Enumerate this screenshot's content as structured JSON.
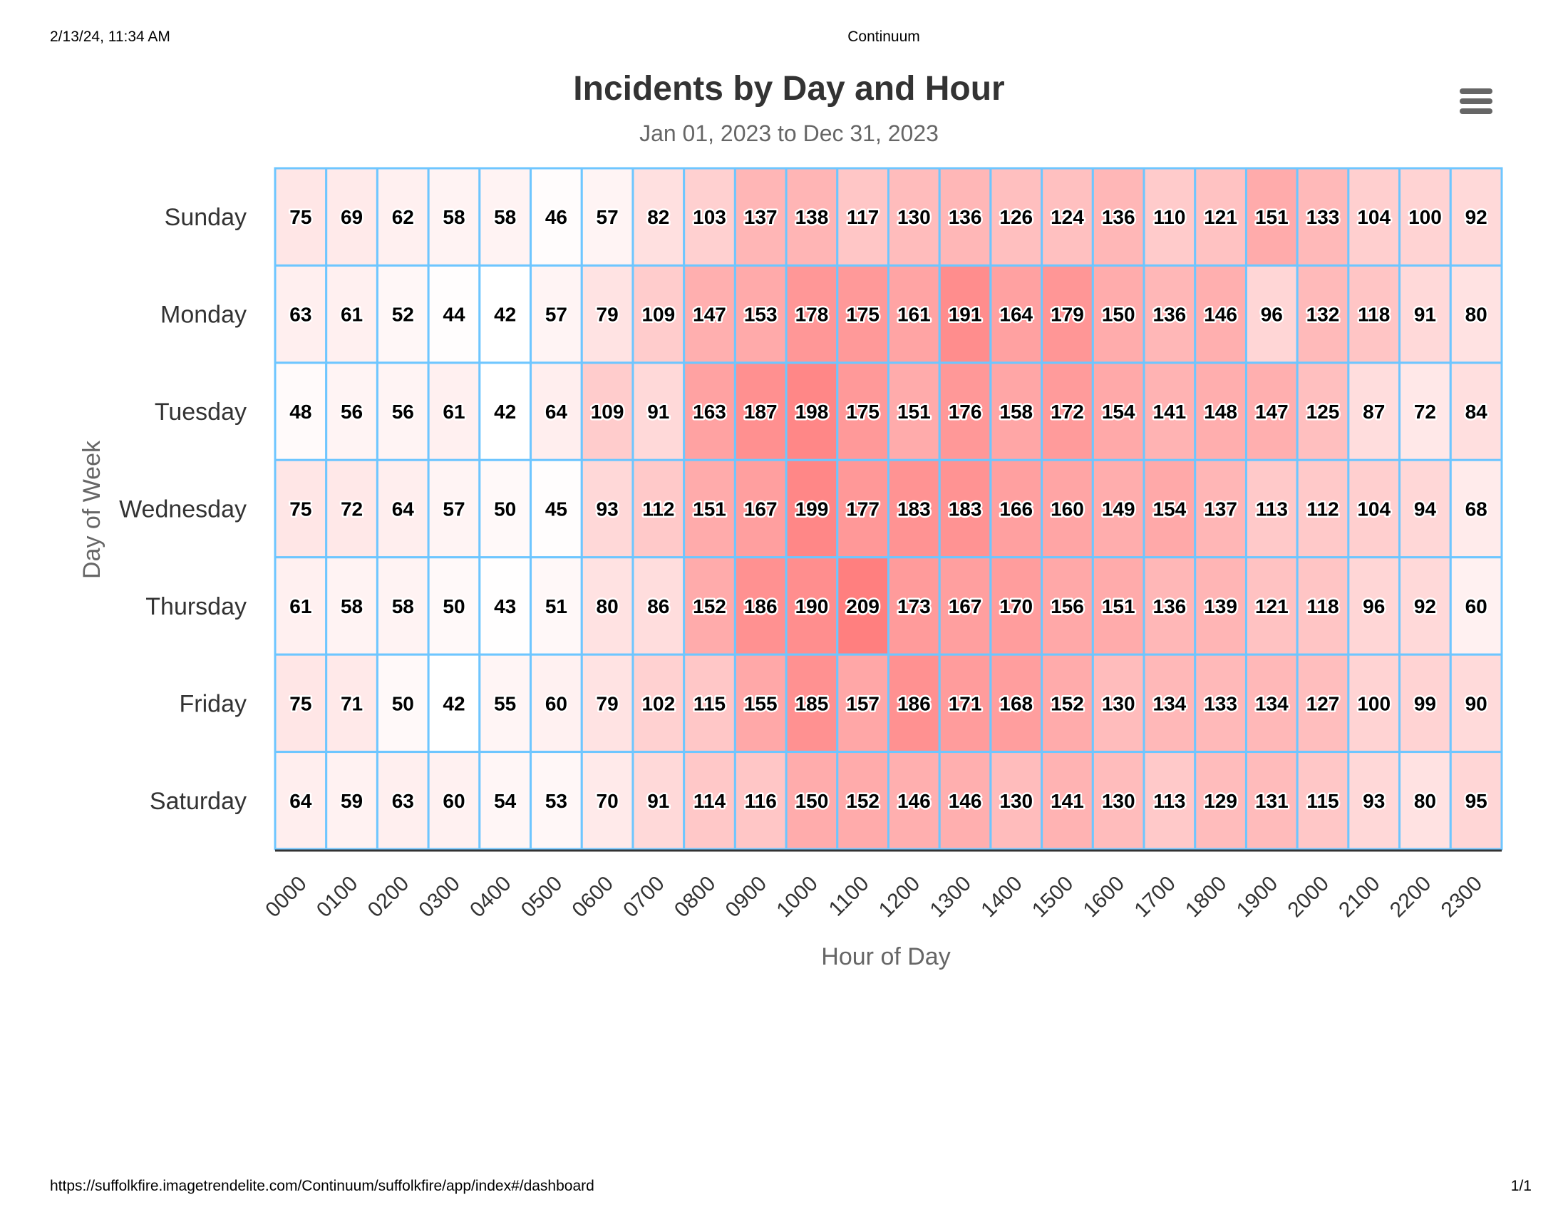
{
  "print_header": {
    "datetime": "2/13/24, 11:34 AM",
    "page_title": "Continuum"
  },
  "print_footer": {
    "url": "https://suffolkfire.imagetrendelite.com/Continuum/suffolkfire/app/index#/dashboard",
    "page_number": "1/1"
  },
  "menu": {
    "icon": "hamburger-menu-icon"
  },
  "chart_data": {
    "type": "heatmap",
    "title": "Incidents by Day and Hour",
    "subtitle": "Jan 01, 2023 to Dec 31, 2023",
    "xlabel": "Hour of Day",
    "ylabel": "Day of Week",
    "x_categories": [
      "0000",
      "0100",
      "0200",
      "0300",
      "0400",
      "0500",
      "0600",
      "0700",
      "0800",
      "0900",
      "1000",
      "1100",
      "1200",
      "1300",
      "1400",
      "1500",
      "1600",
      "1700",
      "1800",
      "1900",
      "2000",
      "2100",
      "2200",
      "2300"
    ],
    "y_categories": [
      "Sunday",
      "Monday",
      "Tuesday",
      "Wednesday",
      "Thursday",
      "Friday",
      "Saturday"
    ],
    "values": [
      [
        75,
        69,
        62,
        58,
        58,
        46,
        57,
        82,
        103,
        137,
        138,
        117,
        130,
        136,
        126,
        124,
        136,
        110,
        121,
        151,
        133,
        104,
        100,
        92
      ],
      [
        63,
        61,
        52,
        44,
        42,
        57,
        79,
        109,
        147,
        153,
        178,
        175,
        161,
        191,
        164,
        179,
        150,
        136,
        146,
        96,
        132,
        118,
        91,
        80
      ],
      [
        48,
        56,
        56,
        61,
        42,
        64,
        109,
        91,
        163,
        187,
        198,
        175,
        151,
        176,
        158,
        172,
        154,
        141,
        148,
        147,
        125,
        87,
        72,
        84
      ],
      [
        75,
        72,
        64,
        57,
        50,
        45,
        93,
        112,
        151,
        167,
        199,
        177,
        183,
        183,
        166,
        160,
        149,
        154,
        137,
        113,
        112,
        104,
        94,
        68
      ],
      [
        61,
        58,
        58,
        50,
        43,
        51,
        80,
        86,
        152,
        186,
        190,
        209,
        173,
        167,
        170,
        156,
        151,
        136,
        139,
        121,
        118,
        96,
        92,
        60
      ],
      [
        75,
        71,
        50,
        42,
        55,
        60,
        79,
        102,
        115,
        155,
        185,
        157,
        186,
        171,
        168,
        152,
        130,
        134,
        133,
        134,
        127,
        100,
        99,
        90
      ],
      [
        64,
        59,
        63,
        60,
        54,
        53,
        70,
        91,
        114,
        116,
        150,
        152,
        146,
        146,
        130,
        141,
        130,
        113,
        129,
        131,
        115,
        93,
        80,
        95
      ]
    ],
    "color_scale": {
      "min_color": "#ffffff",
      "max_color": "#ff7f7f"
    },
    "cell_border_color": "#6ec6ff",
    "x_tick_rotation_deg": -45,
    "legend": "none",
    "grid": true
  }
}
